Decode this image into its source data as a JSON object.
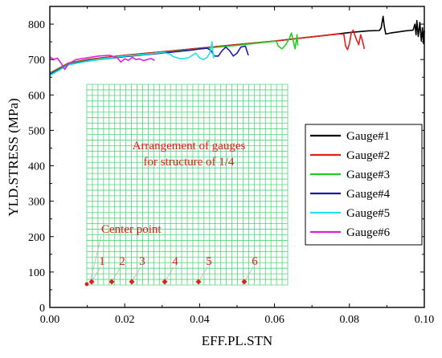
{
  "chart_data": {
    "type": "line",
    "xlabel": "EFF.PL.STN",
    "ylabel": "YLD.STRESS (MPa)",
    "xlim": [
      0.0,
      0.1
    ],
    "ylim": [
      0,
      850
    ],
    "x_ticks": [
      0.0,
      0.02,
      0.04,
      0.06,
      0.08,
      0.1
    ],
    "x_tick_labels": [
      "0.00",
      "0.02",
      "0.04",
      "0.06",
      "0.08",
      "0.10"
    ],
    "y_ticks": [
      0,
      100,
      200,
      300,
      400,
      500,
      600,
      700,
      800
    ],
    "y_tick_labels": [
      "0",
      "100",
      "200",
      "300",
      "400",
      "500",
      "600",
      "700",
      "800"
    ],
    "legend_position": "right",
    "series": [
      {
        "name": "Gauge#1",
        "color": "#000000",
        "points": [
          [
            0.0,
            660
          ],
          [
            0.005,
            690
          ],
          [
            0.01,
            700
          ],
          [
            0.015,
            706
          ],
          [
            0.02,
            712
          ],
          [
            0.03,
            722
          ],
          [
            0.04,
            732
          ],
          [
            0.05,
            742
          ],
          [
            0.06,
            752
          ],
          [
            0.07,
            764
          ],
          [
            0.08,
            776
          ],
          [
            0.085,
            781
          ],
          [
            0.088,
            782
          ],
          [
            0.0885,
            790
          ],
          [
            0.089,
            822
          ],
          [
            0.0893,
            795
          ],
          [
            0.0897,
            772
          ],
          [
            0.091,
            775
          ],
          [
            0.093,
            778
          ],
          [
            0.095,
            781
          ],
          [
            0.097,
            783
          ],
          [
            0.0975,
            800
          ],
          [
            0.0978,
            770
          ],
          [
            0.098,
            810
          ],
          [
            0.0984,
            765
          ],
          [
            0.0988,
            805
          ],
          [
            0.0992,
            752
          ],
          [
            0.0995,
            790
          ],
          [
            0.0998,
            745
          ],
          [
            0.1,
            782
          ]
        ]
      },
      {
        "name": "Gauge#2",
        "color": "#e0201b",
        "points": [
          [
            0.0,
            662
          ],
          [
            0.005,
            690
          ],
          [
            0.01,
            700
          ],
          [
            0.02,
            712
          ],
          [
            0.03,
            722
          ],
          [
            0.04,
            732
          ],
          [
            0.05,
            742
          ],
          [
            0.06,
            752
          ],
          [
            0.07,
            764
          ],
          [
            0.077,
            772
          ],
          [
            0.0785,
            772
          ],
          [
            0.079,
            738
          ],
          [
            0.0795,
            728
          ],
          [
            0.08,
            745
          ],
          [
            0.0805,
            775
          ],
          [
            0.081,
            783
          ],
          [
            0.0818,
            758
          ],
          [
            0.0825,
            742
          ],
          [
            0.083,
            770
          ],
          [
            0.0835,
            752
          ],
          [
            0.084,
            730
          ]
        ]
      },
      {
        "name": "Gauge#3",
        "color": "#22cc22",
        "points": [
          [
            0.0,
            660
          ],
          [
            0.005,
            688
          ],
          [
            0.01,
            698
          ],
          [
            0.02,
            710
          ],
          [
            0.03,
            720
          ],
          [
            0.04,
            730
          ],
          [
            0.05,
            740
          ],
          [
            0.055,
            746
          ],
          [
            0.0605,
            752
          ],
          [
            0.061,
            738
          ],
          [
            0.062,
            730
          ],
          [
            0.063,
            742
          ],
          [
            0.064,
            760
          ],
          [
            0.0645,
            775
          ],
          [
            0.065,
            752
          ],
          [
            0.0655,
            730
          ],
          [
            0.066,
            770
          ],
          [
            0.0662,
            740
          ]
        ]
      },
      {
        "name": "Gauge#4",
        "color": "#1c1caa",
        "points": [
          [
            0.0,
            658
          ],
          [
            0.005,
            686
          ],
          [
            0.01,
            696
          ],
          [
            0.02,
            708
          ],
          [
            0.03,
            718
          ],
          [
            0.038,
            727
          ],
          [
            0.04,
            730
          ],
          [
            0.042,
            732
          ],
          [
            0.043,
            726
          ],
          [
            0.044,
            710
          ],
          [
            0.045,
            710
          ],
          [
            0.046,
            725
          ],
          [
            0.047,
            735
          ],
          [
            0.048,
            725
          ],
          [
            0.049,
            710
          ],
          [
            0.05,
            718
          ],
          [
            0.051,
            735
          ],
          [
            0.0522,
            738
          ],
          [
            0.053,
            712
          ]
        ]
      },
      {
        "name": "Gauge#5",
        "color": "#22e0e8",
        "points": [
          [
            0.0,
            655
          ],
          [
            0.005,
            685
          ],
          [
            0.01,
            695
          ],
          [
            0.015,
            703
          ],
          [
            0.02,
            710
          ],
          [
            0.025,
            714
          ],
          [
            0.03,
            720
          ],
          [
            0.032,
            716
          ],
          [
            0.033,
            708
          ],
          [
            0.035,
            702
          ],
          [
            0.037,
            705
          ],
          [
            0.039,
            718
          ],
          [
            0.04,
            705
          ],
          [
            0.041,
            700
          ],
          [
            0.042,
            706
          ],
          [
            0.0428,
            720
          ],
          [
            0.0433,
            750
          ],
          [
            0.0437,
            705
          ],
          [
            0.044,
            715
          ]
        ]
      },
      {
        "name": "Gauge#6",
        "color": "#e020e0",
        "points": [
          [
            0.0,
            708
          ],
          [
            0.001,
            700
          ],
          [
            0.002,
            704
          ],
          [
            0.003,
            690
          ],
          [
            0.004,
            672
          ],
          [
            0.005,
            688
          ],
          [
            0.007,
            700
          ],
          [
            0.01,
            705
          ],
          [
            0.013,
            710
          ],
          [
            0.016,
            712
          ],
          [
            0.018,
            705
          ],
          [
            0.019,
            693
          ],
          [
            0.02,
            702
          ],
          [
            0.021,
            698
          ],
          [
            0.022,
            706
          ],
          [
            0.023,
            700
          ],
          [
            0.024,
            702
          ],
          [
            0.025,
            697
          ],
          [
            0.026,
            700
          ],
          [
            0.027,
            703
          ],
          [
            0.028,
            698
          ]
        ]
      }
    ],
    "inset": {
      "title_line1": "Arrangement of gauges",
      "title_line2": "for structure of 1/4",
      "center_label": "Center point",
      "gauge_labels": [
        "1",
        "2",
        "3",
        "4",
        "5",
        "6"
      ]
    }
  }
}
